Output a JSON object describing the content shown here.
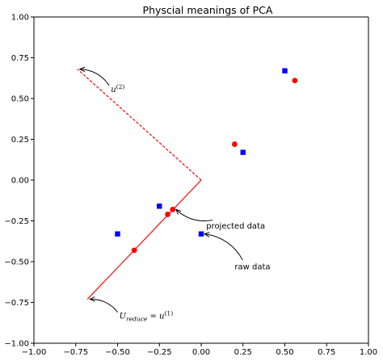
{
  "chart_data": {
    "type": "scatter",
    "title": "Physcial meanings of PCA",
    "xlabel": "",
    "ylabel": "",
    "xlim": [
      -1.0,
      1.0
    ],
    "ylim": [
      -1.0,
      1.0
    ],
    "xticks": [
      -1.0,
      -0.75,
      -0.5,
      -0.25,
      0.0,
      0.25,
      0.5,
      0.75,
      1.0
    ],
    "yticks": [
      -1.0,
      -0.75,
      -0.5,
      -0.25,
      0.0,
      0.25,
      0.5,
      0.75,
      1.0
    ],
    "xtick_labels": [
      "−1.00",
      "−0.75",
      "−0.50",
      "−0.25",
      "0.00",
      "0.25",
      "0.50",
      "0.75",
      "1.00"
    ],
    "ytick_labels": [
      "−1.00",
      "−0.75",
      "−0.50",
      "−0.25",
      "0.00",
      "0.25",
      "0.50",
      "0.75",
      "1.00"
    ],
    "grid": false,
    "colors": {
      "raw": "#0000ff",
      "projected": "#ff0000",
      "axis": "#000000"
    },
    "series": [
      {
        "marker": "square",
        "color": "#0000ff",
        "points": [
          [
            -0.5,
            -0.33
          ],
          [
            -0.25,
            -0.16
          ],
          [
            0.0,
            -0.33
          ],
          [
            0.25,
            0.17
          ],
          [
            0.5,
            0.67
          ]
        ]
      },
      {
        "marker": "circle",
        "color": "#ff0000",
        "points": [
          [
            -0.4,
            -0.43
          ],
          [
            -0.2,
            -0.21
          ],
          [
            -0.17,
            -0.18
          ],
          [
            0.2,
            0.22
          ],
          [
            0.56,
            0.61
          ]
        ]
      }
    ],
    "lines": [
      {
        "from": [
          0.0,
          0.0
        ],
        "to": [
          -0.68,
          -0.73
        ],
        "style": "solid",
        "color": "#ff0000"
      },
      {
        "from": [
          0.0,
          0.0
        ],
        "to": [
          -0.74,
          0.68
        ],
        "style": "dashed",
        "color": "#ff0000"
      }
    ],
    "annotations": [
      {
        "text": "projected data",
        "xy": [
          -0.17,
          -0.18
        ],
        "xytext": [
          0.03,
          -0.28
        ]
      },
      {
        "text": "raw data",
        "xy": [
          0.0,
          -0.33
        ],
        "xytext": [
          0.2,
          -0.53
        ]
      },
      {
        "text_base": "u",
        "text_sup": "(2)",
        "xy": [
          -0.74,
          0.68
        ],
        "xytext": [
          -0.54,
          0.56
        ]
      },
      {
        "text_base": "U",
        "text_sub": "reduce",
        "text_eq": " = ",
        "text_rhs": "u",
        "text_rhs_sup": "(1)",
        "xy": [
          -0.68,
          -0.73
        ],
        "xytext": [
          -0.49,
          -0.83
        ]
      }
    ]
  }
}
